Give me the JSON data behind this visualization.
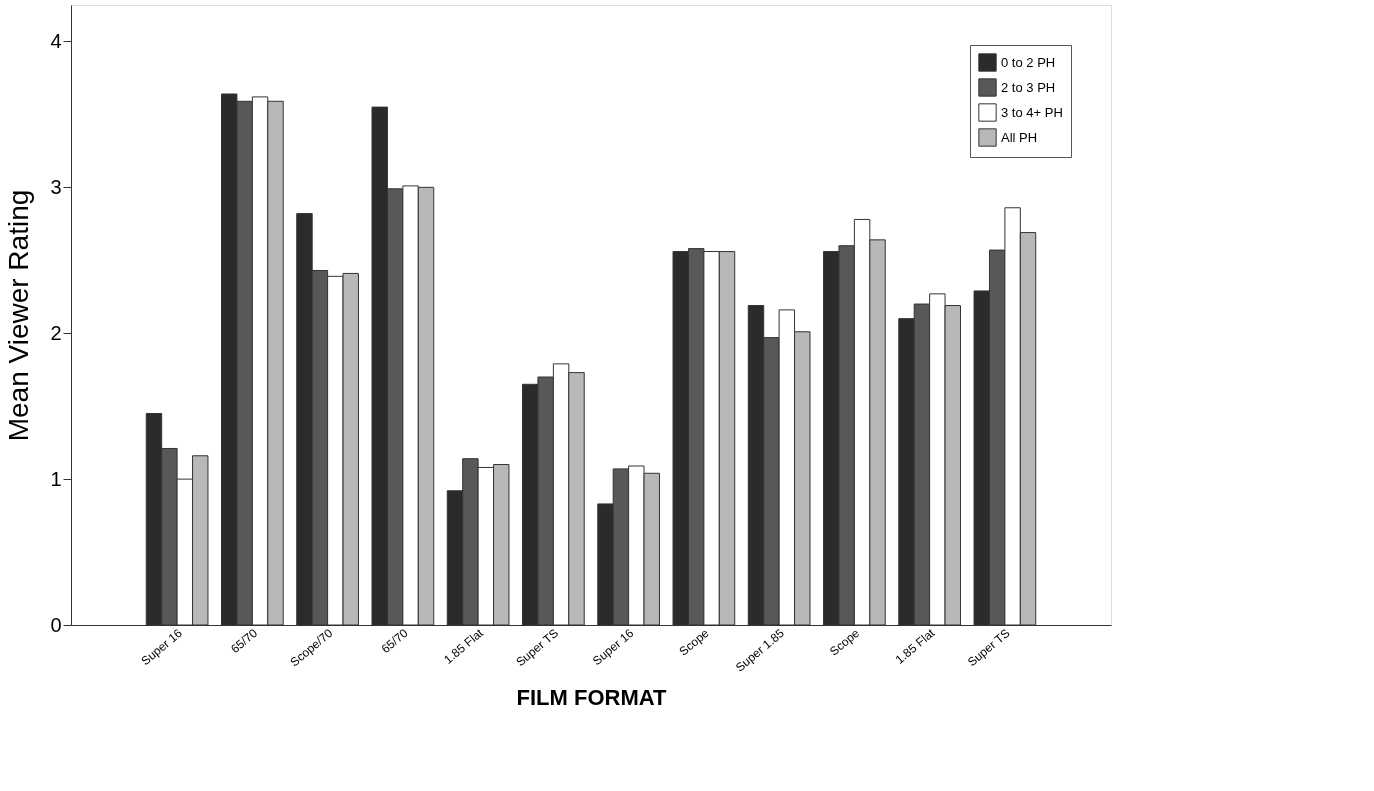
{
  "chart_data": {
    "type": "bar",
    "xlabel": "FILM FORMAT",
    "ylabel": "Mean Viewer Rating",
    "categories": [
      "Super 16",
      "65/70",
      "Scope/70",
      "65/70",
      "1.85 Flat",
      "Super TS",
      "Super 16",
      "Scope",
      "Super 1.85",
      "Scope",
      "1.85 Flat",
      "Super TS"
    ],
    "series": [
      {
        "name": "0 to 2 PH",
        "color": "#2b2b2b",
        "values": [
          1.45,
          3.64,
          2.82,
          3.55,
          0.92,
          1.65,
          0.83,
          2.56,
          2.19,
          2.56,
          2.1,
          2.29
        ]
      },
      {
        "name": "2 to 3 PH",
        "color": "#585858",
        "values": [
          1.21,
          3.59,
          2.43,
          2.99,
          1.14,
          1.7,
          1.07,
          2.58,
          1.97,
          2.6,
          2.2,
          2.57
        ]
      },
      {
        "name": "3 to 4+ PH",
        "color": "#ffffff",
        "values": [
          1.0,
          3.62,
          2.39,
          3.01,
          1.08,
          1.79,
          1.09,
          2.56,
          2.16,
          2.78,
          2.27,
          2.86
        ]
      },
      {
        "name": "All PH",
        "color": "#b8b8b8",
        "values": [
          1.16,
          3.59,
          2.41,
          3.0,
          1.1,
          1.73,
          1.04,
          2.56,
          2.01,
          2.64,
          2.19,
          2.69
        ]
      }
    ],
    "ylim": [
      0,
      4.25
    ],
    "yticks": [
      0,
      1,
      2,
      3,
      4
    ],
    "grid": false,
    "legend": "top right"
  }
}
